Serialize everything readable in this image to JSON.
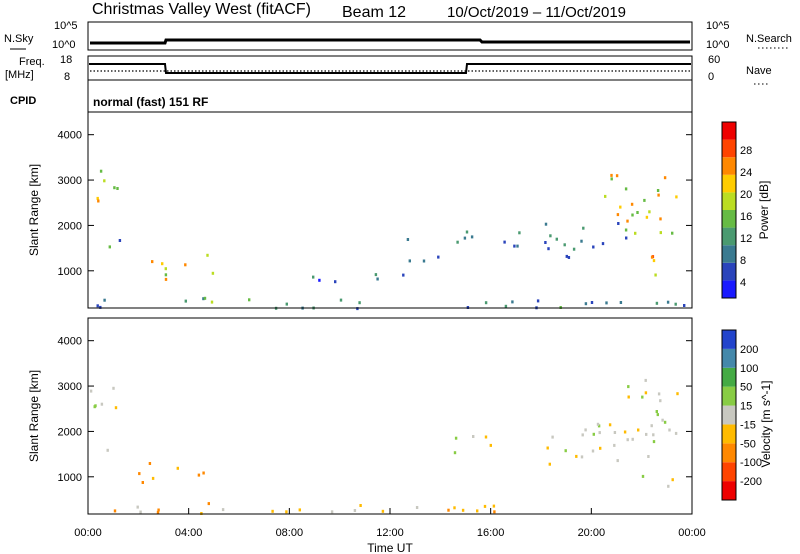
{
  "header": {
    "title": "Christmas Valley West (fitACF)",
    "beam": "Beam 12",
    "date_range": "10/Oct/2019 – 11/Oct/2019"
  },
  "top_panels": {
    "nsky_label": "N.Sky",
    "nsky_tick_top": "10^5",
    "nsky_tick_bottom": "10^0",
    "nsearch_label": "N.Search",
    "nsearch_tick_top": "10^5",
    "nsearch_tick_bottom": "10^0",
    "freq_label_1": "Freq.",
    "freq_label_2": "[MHz]",
    "freq_tick_top": "18",
    "freq_tick_bottom": "8",
    "nave_label": "Nave",
    "nave_tick_top": "60",
    "nave_tick_bottom": "0",
    "cpid_label": "CPID",
    "cpid_value": "normal (fast) 151 RF"
  },
  "colors": {
    "power_scale": [
      "#1a1aff",
      "#2a44bb",
      "#3a7a90",
      "#4a9a70",
      "#66bb44",
      "#bbdd22",
      "#ffcc00",
      "#ff8800",
      "#ff4400",
      "#ee0000"
    ],
    "velocity_scale": [
      "#ee0000",
      "#ff4400",
      "#ff8800",
      "#ffbb00",
      "#c8c8c0",
      "#88cc44",
      "#44aa44",
      "#4488aa",
      "#2244cc"
    ]
  },
  "chart_data": [
    {
      "type": "heatmap",
      "title": "Power",
      "xlabel": "",
      "ylabel": "Slant Range [km]",
      "xlim_hours": [
        0,
        24
      ],
      "ylim": [
        180,
        4500
      ],
      "yticks": [
        "1000",
        "2000",
        "3000",
        "4000"
      ],
      "colorbar_label": "Power [dB]",
      "colorbar_ticks": [
        "4",
        "8",
        "12",
        "16",
        "20",
        "24",
        "28"
      ],
      "regions": [
        {
          "t": [
            0.0,
            1.2
          ],
          "r": [
            2550,
            3300
          ],
          "v": 18
        },
        {
          "t": [
            0.3,
            1.6
          ],
          "r": [
            1550,
            1800
          ],
          "v": 8
        },
        {
          "t": [
            1.8,
            5.0
          ],
          "r": [
            820,
            1400
          ],
          "v": 18
        },
        {
          "t": [
            0.0,
            24.0
          ],
          "r": [
            200,
            400
          ],
          "v": 8
        },
        {
          "t": [
            3.5,
            6.5
          ],
          "r": [
            300,
            450
          ],
          "v": 12
        },
        {
          "t": [
            8.0,
            13.0
          ],
          "r": [
            750,
            1000
          ],
          "v": 6
        },
        {
          "t": [
            12.5,
            14.0
          ],
          "r": [
            1200,
            1800
          ],
          "v": 6
        },
        {
          "t": [
            14.5,
            16.0
          ],
          "r": [
            1500,
            2000
          ],
          "v": 8
        },
        {
          "t": [
            16.5,
            18.5
          ],
          "r": [
            1500,
            1900
          ],
          "v": 8
        },
        {
          "t": [
            18.0,
            21.5
          ],
          "r": [
            1300,
            2100
          ],
          "v": 8
        },
        {
          "t": [
            20.0,
            24.0
          ],
          "r": [
            1800,
            3200
          ],
          "v": 18
        },
        {
          "t": [
            22.0,
            23.5
          ],
          "r": [
            800,
            1500
          ],
          "v": 20
        }
      ]
    },
    {
      "type": "heatmap",
      "title": "Velocity",
      "xlabel": "Time UT",
      "ylabel": "Slant Range [km]",
      "xlim_hours": [
        0,
        24
      ],
      "ylim": [
        180,
        4500
      ],
      "yticks": [
        "1000",
        "2000",
        "3000",
        "4000"
      ],
      "xticks": [
        "00:00",
        "04:00",
        "08:00",
        "12:00",
        "16:00",
        "20:00",
        "00:00"
      ],
      "colorbar_label": "Velocity [m s^-1]",
      "colorbar_ticks": [
        "200",
        "100",
        "50",
        "15",
        "-15",
        "-50",
        "-100",
        "-200"
      ],
      "regions": [
        {
          "t": [
            0.0,
            1.2
          ],
          "r": [
            2550,
            3300
          ],
          "v": 0
        },
        {
          "t": [
            0.3,
            1.6
          ],
          "r": [
            1550,
            1800
          ],
          "v": 0
        },
        {
          "t": [
            1.8,
            5.0
          ],
          "r": [
            820,
            1400
          ],
          "v": -60
        },
        {
          "t": [
            0.0,
            24.0
          ],
          "r": [
            200,
            400
          ],
          "v": -30
        },
        {
          "t": [
            3.5,
            6.5
          ],
          "r": [
            300,
            450
          ],
          "v": -60
        },
        {
          "t": [
            14.5,
            16.0
          ],
          "r": [
            1500,
            2000
          ],
          "v": 0
        },
        {
          "t": [
            18.0,
            21.5
          ],
          "r": [
            1300,
            2100
          ],
          "v": 0
        },
        {
          "t": [
            20.0,
            24.0
          ],
          "r": [
            1800,
            3200
          ],
          "v": 0
        },
        {
          "t": [
            22.0,
            23.5
          ],
          "r": [
            800,
            1500
          ],
          "v": 0
        }
      ]
    }
  ]
}
